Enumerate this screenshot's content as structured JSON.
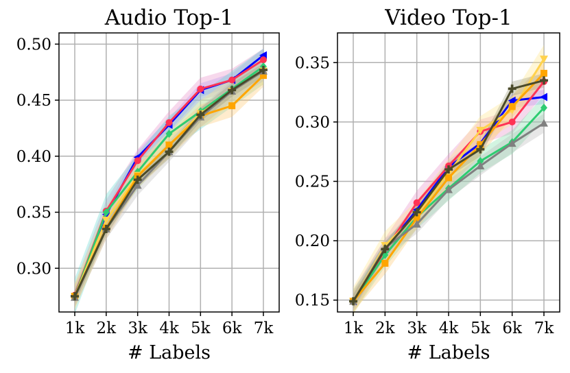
{
  "chart_data": [
    {
      "type": "line",
      "title": "Audio Top-1",
      "xlabel": "# Labels",
      "ylabel": "",
      "categories": [
        "1k",
        "2k",
        "3k",
        "4k",
        "5k",
        "6k",
        "7k"
      ],
      "ylim": [
        0.261,
        0.51
      ],
      "yticks": [
        "0.30",
        "0.35",
        "0.40",
        "0.45",
        "0.50"
      ],
      "ytick_values": [
        0.3,
        0.35,
        0.4,
        0.45,
        0.5
      ],
      "grid": true,
      "series": [
        {
          "color": "#0000ff",
          "marker": "tri-left",
          "values": [
            0.276,
            0.348,
            0.399,
            0.428,
            0.459,
            0.468,
            0.49
          ],
          "band": 0.006,
          "band_color": "#a0a0ff"
        },
        {
          "color": "#ff3355",
          "marker": "circle",
          "values": [
            0.276,
            0.351,
            0.396,
            0.43,
            0.46,
            0.468,
            0.486
          ],
          "band": 0.01,
          "band_color": "#e890c8"
        },
        {
          "color": "#2ecc71",
          "marker": "diamond",
          "values": [
            0.275,
            0.35,
            0.386,
            0.42,
            0.44,
            0.46,
            0.48
          ],
          "band": 0.016,
          "band_color": "#66d9d0"
        },
        {
          "color": "#ffd24d",
          "marker": "tri-down",
          "values": [
            0.275,
            0.343,
            0.383,
            0.41,
            0.438,
            0.458,
            0.476
          ],
          "band": 0.012,
          "band_color": "#ffe48a"
        },
        {
          "color": "#ffa500",
          "marker": "square",
          "values": [
            0.275,
            0.336,
            0.382,
            0.41,
            0.436,
            0.445,
            0.472
          ],
          "band": 0.01,
          "band_color": "#ffc870"
        },
        {
          "color": "#808080",
          "marker": "tri-up",
          "values": [
            0.274,
            0.335,
            0.374,
            0.404,
            0.435,
            0.458,
            0.476
          ],
          "band": 0.009,
          "band_color": "#bbbbbb"
        },
        {
          "color": "#4a4a2a",
          "marker": "plus",
          "values": [
            0.275,
            0.335,
            0.379,
            0.404,
            0.437,
            0.459,
            0.477
          ],
          "band": 0.006,
          "band_color": "#9a9a7a"
        }
      ]
    },
    {
      "type": "line",
      "title": "Video Top-1",
      "xlabel": "# Labels",
      "ylabel": "",
      "categories": [
        "1k",
        "2k",
        "3k",
        "4k",
        "5k",
        "6k",
        "7k"
      ],
      "ylim": [
        0.14,
        0.375
      ],
      "yticks": [
        "0.15",
        "0.20",
        "0.25",
        "0.30",
        "0.35"
      ],
      "ytick_values": [
        0.15,
        0.2,
        0.25,
        0.3,
        0.35
      ],
      "grid": true,
      "series": [
        {
          "color": "#0000ff",
          "marker": "tri-left",
          "values": [
            0.149,
            0.193,
            0.226,
            0.262,
            0.282,
            0.318,
            0.321
          ],
          "band": 0.006,
          "band_color": "#a0a0ff"
        },
        {
          "color": "#ff3355",
          "marker": "circle",
          "values": [
            0.149,
            0.192,
            0.232,
            0.263,
            0.292,
            0.3,
            0.334
          ],
          "band": 0.01,
          "band_color": "#e890c8"
        },
        {
          "color": "#2ecc71",
          "marker": "diamond",
          "values": [
            0.149,
            0.188,
            0.22,
            0.244,
            0.267,
            0.283,
            0.312
          ],
          "band": 0.01,
          "band_color": "#7ee0a8"
        },
        {
          "color": "#ffd24d",
          "marker": "tri-down",
          "values": [
            0.149,
            0.196,
            0.222,
            0.257,
            0.293,
            0.31,
            0.353
          ],
          "band": 0.012,
          "band_color": "#ffe48a"
        },
        {
          "color": "#ffa500",
          "marker": "square",
          "values": [
            0.149,
            0.181,
            0.219,
            0.253,
            0.281,
            0.313,
            0.341
          ],
          "band": 0.009,
          "band_color": "#ffc870"
        },
        {
          "color": "#808080",
          "marker": "tri-up",
          "values": [
            0.149,
            0.194,
            0.214,
            0.243,
            0.263,
            0.282,
            0.299
          ],
          "band": 0.008,
          "band_color": "#bbbbbb"
        },
        {
          "color": "#4a4a2a",
          "marker": "plus",
          "values": [
            0.149,
            0.193,
            0.224,
            0.26,
            0.277,
            0.328,
            0.335
          ],
          "band": 0.006,
          "band_color": "#9a9a7a"
        }
      ]
    }
  ]
}
